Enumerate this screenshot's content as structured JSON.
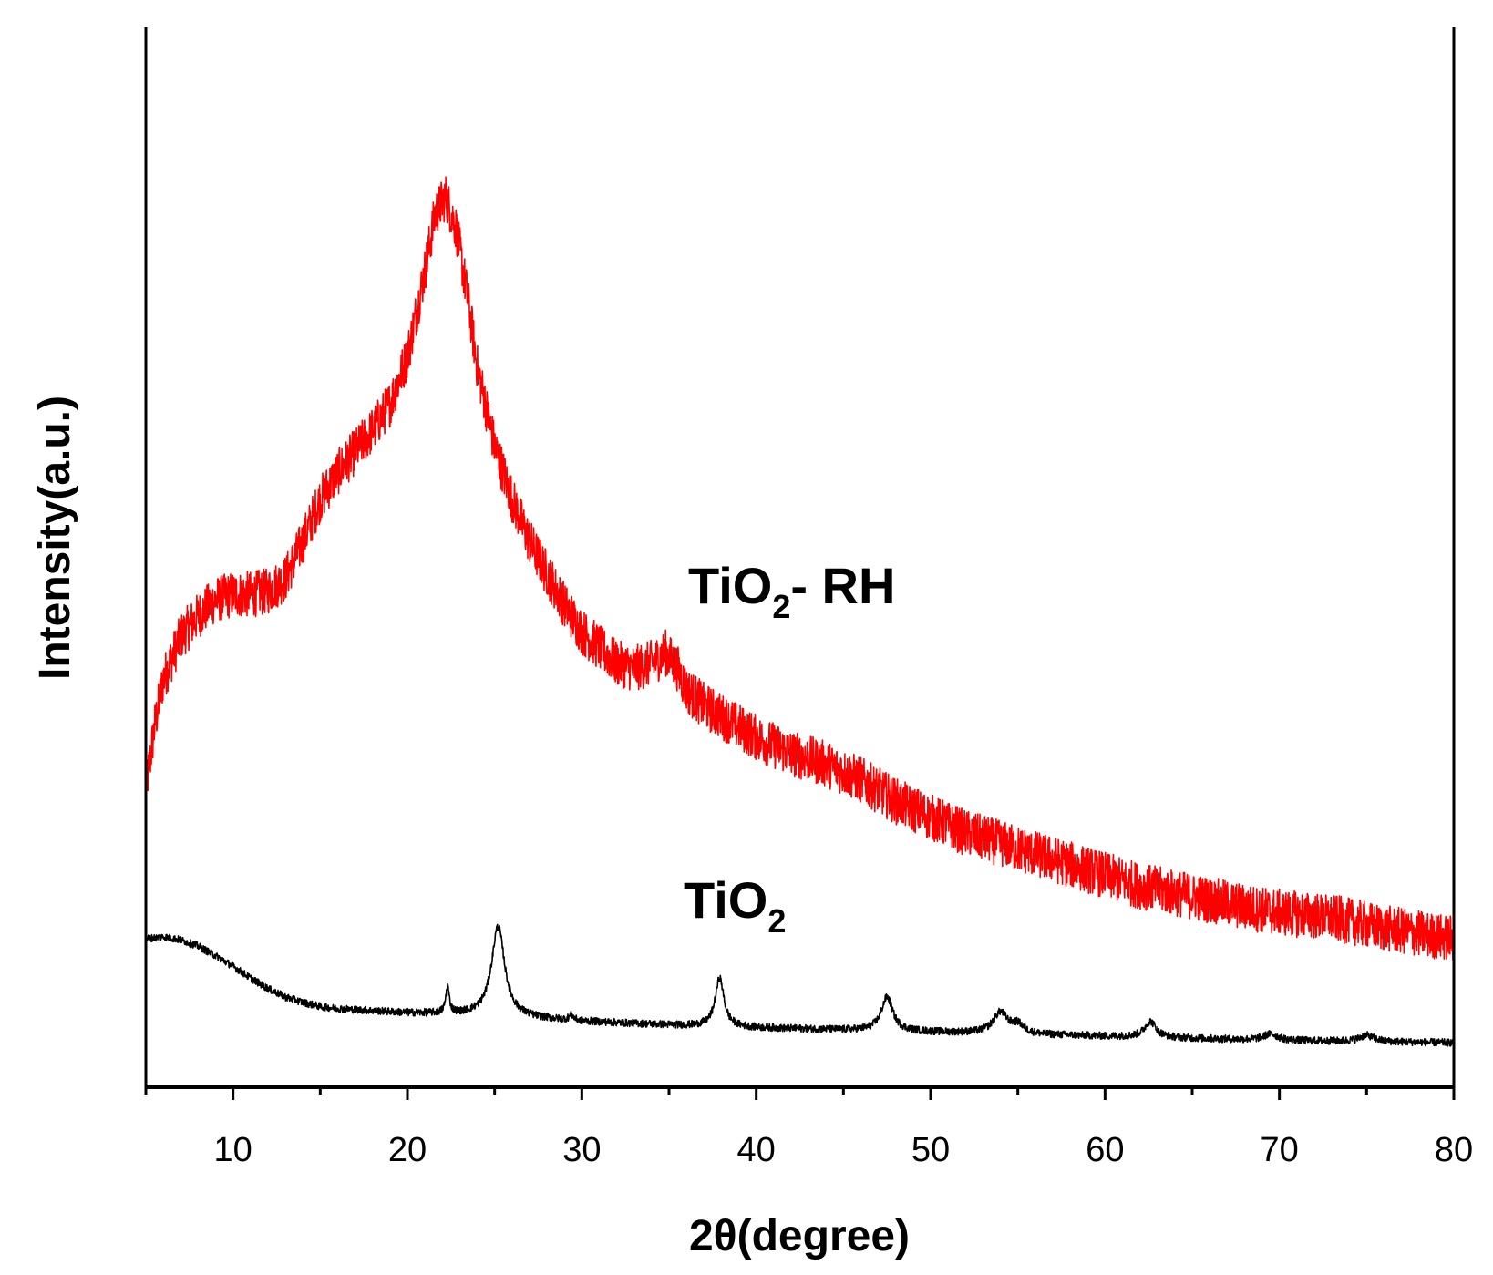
{
  "chart_data": {
    "type": "line",
    "title": "",
    "xlabel": "2θ(degree)",
    "ylabel": "Intensity(a.u.)",
    "xlim": [
      5,
      80
    ],
    "ylim": [
      0,
      100
    ],
    "y_tick_labels_shown": false,
    "xticks": [
      10,
      20,
      30,
      40,
      50,
      60,
      70,
      80
    ],
    "xtick_labels": [
      "10",
      "20",
      "30",
      "40",
      "50",
      "60",
      "70",
      "80"
    ],
    "grid": false,
    "legend": "none (curves labeled inline)",
    "series": [
      {
        "name": "TiO2- RH",
        "label_main": "TiO",
        "label_sub": "2",
        "label_tail": "- RH",
        "color": "#ff0000",
        "noise": 2.2,
        "points": [
          [
            5.0,
            28.0
          ],
          [
            5.5,
            34.0
          ],
          [
            6.0,
            38.5
          ],
          [
            7.0,
            42.5
          ],
          [
            8.0,
            44.5
          ],
          [
            9.0,
            46.0
          ],
          [
            10.0,
            46.5
          ],
          [
            11.0,
            46.5
          ],
          [
            12.0,
            46.8
          ],
          [
            13.0,
            48.0
          ],
          [
            14.0,
            51.5
          ],
          [
            15.0,
            55.5
          ],
          [
            16.0,
            58.0
          ],
          [
            17.0,
            60.0
          ],
          [
            18.0,
            62.0
          ],
          [
            19.0,
            64.5
          ],
          [
            20.0,
            69.0
          ],
          [
            21.0,
            77.0
          ],
          [
            21.6,
            82.5
          ],
          [
            22.2,
            84.0
          ],
          [
            22.8,
            81.0
          ],
          [
            23.5,
            74.0
          ],
          [
            24.0,
            68.0
          ],
          [
            25.0,
            60.5
          ],
          [
            26.0,
            55.5
          ],
          [
            27.0,
            51.5
          ],
          [
            28.0,
            48.5
          ],
          [
            29.0,
            45.5
          ],
          [
            30.0,
            43.0
          ],
          [
            31.0,
            41.5
          ],
          [
            32.0,
            40.0
          ],
          [
            33.0,
            39.5
          ],
          [
            34.0,
            40.0
          ],
          [
            34.8,
            41.0
          ],
          [
            35.5,
            39.5
          ],
          [
            36.0,
            37.5
          ],
          [
            37.0,
            36.0
          ],
          [
            38.0,
            35.0
          ],
          [
            40.0,
            33.0
          ],
          [
            42.0,
            31.5
          ],
          [
            44.0,
            30.5
          ],
          [
            46.0,
            29.0
          ],
          [
            48.0,
            27.0
          ],
          [
            50.0,
            25.5
          ],
          [
            52.0,
            24.0
          ],
          [
            55.0,
            22.5
          ],
          [
            58.0,
            21.0
          ],
          [
            60.0,
            20.0
          ],
          [
            62.0,
            19.0
          ],
          [
            65.0,
            18.0
          ],
          [
            68.0,
            17.0
          ],
          [
            70.0,
            16.5
          ],
          [
            73.0,
            16.0
          ],
          [
            76.0,
            15.0
          ],
          [
            78.0,
            14.5
          ],
          [
            80.0,
            14.0
          ]
        ]
      },
      {
        "name": "TiO2",
        "label_main": "TiO",
        "label_sub": "2",
        "label_tail": "",
        "color": "#000000",
        "noise": 0.35,
        "baseline_points": [
          [
            5.0,
            14.0
          ],
          [
            6.0,
            14.2
          ],
          [
            7.0,
            13.9
          ],
          [
            8.0,
            13.3
          ],
          [
            9.0,
            12.4
          ],
          [
            10.0,
            11.4
          ],
          [
            11.0,
            10.3
          ],
          [
            12.0,
            9.3
          ],
          [
            13.0,
            8.5
          ],
          [
            14.0,
            8.0
          ],
          [
            15.0,
            7.6
          ],
          [
            16.0,
            7.4
          ],
          [
            18.0,
            7.2
          ],
          [
            20.0,
            7.0
          ],
          [
            24.0,
            6.8
          ],
          [
            27.0,
            6.5
          ],
          [
            30.0,
            6.2
          ],
          [
            33.0,
            6.0
          ],
          [
            36.0,
            5.8
          ],
          [
            40.0,
            5.6
          ],
          [
            45.0,
            5.4
          ],
          [
            50.0,
            5.2
          ],
          [
            55.0,
            5.0
          ],
          [
            60.0,
            4.8
          ],
          [
            65.0,
            4.6
          ],
          [
            70.0,
            4.4
          ],
          [
            75.0,
            4.3
          ],
          [
            80.0,
            4.2
          ]
        ],
        "peaks": [
          {
            "x": 22.3,
            "height": 2.5,
            "width": 0.12
          },
          {
            "x": 25.2,
            "height": 8.5,
            "width": 0.45
          },
          {
            "x": 29.4,
            "height": 0.5,
            "width": 0.15
          },
          {
            "x": 37.9,
            "height": 4.6,
            "width": 0.3
          },
          {
            "x": 47.5,
            "height": 3.2,
            "width": 0.4
          },
          {
            "x": 54.0,
            "height": 2.0,
            "width": 0.5
          },
          {
            "x": 55.0,
            "height": 0.8,
            "width": 0.4
          },
          {
            "x": 62.6,
            "height": 1.5,
            "width": 0.4
          },
          {
            "x": 69.5,
            "height": 0.6,
            "width": 0.5
          },
          {
            "x": 75.0,
            "height": 0.6,
            "width": 0.5
          }
        ]
      }
    ]
  }
}
